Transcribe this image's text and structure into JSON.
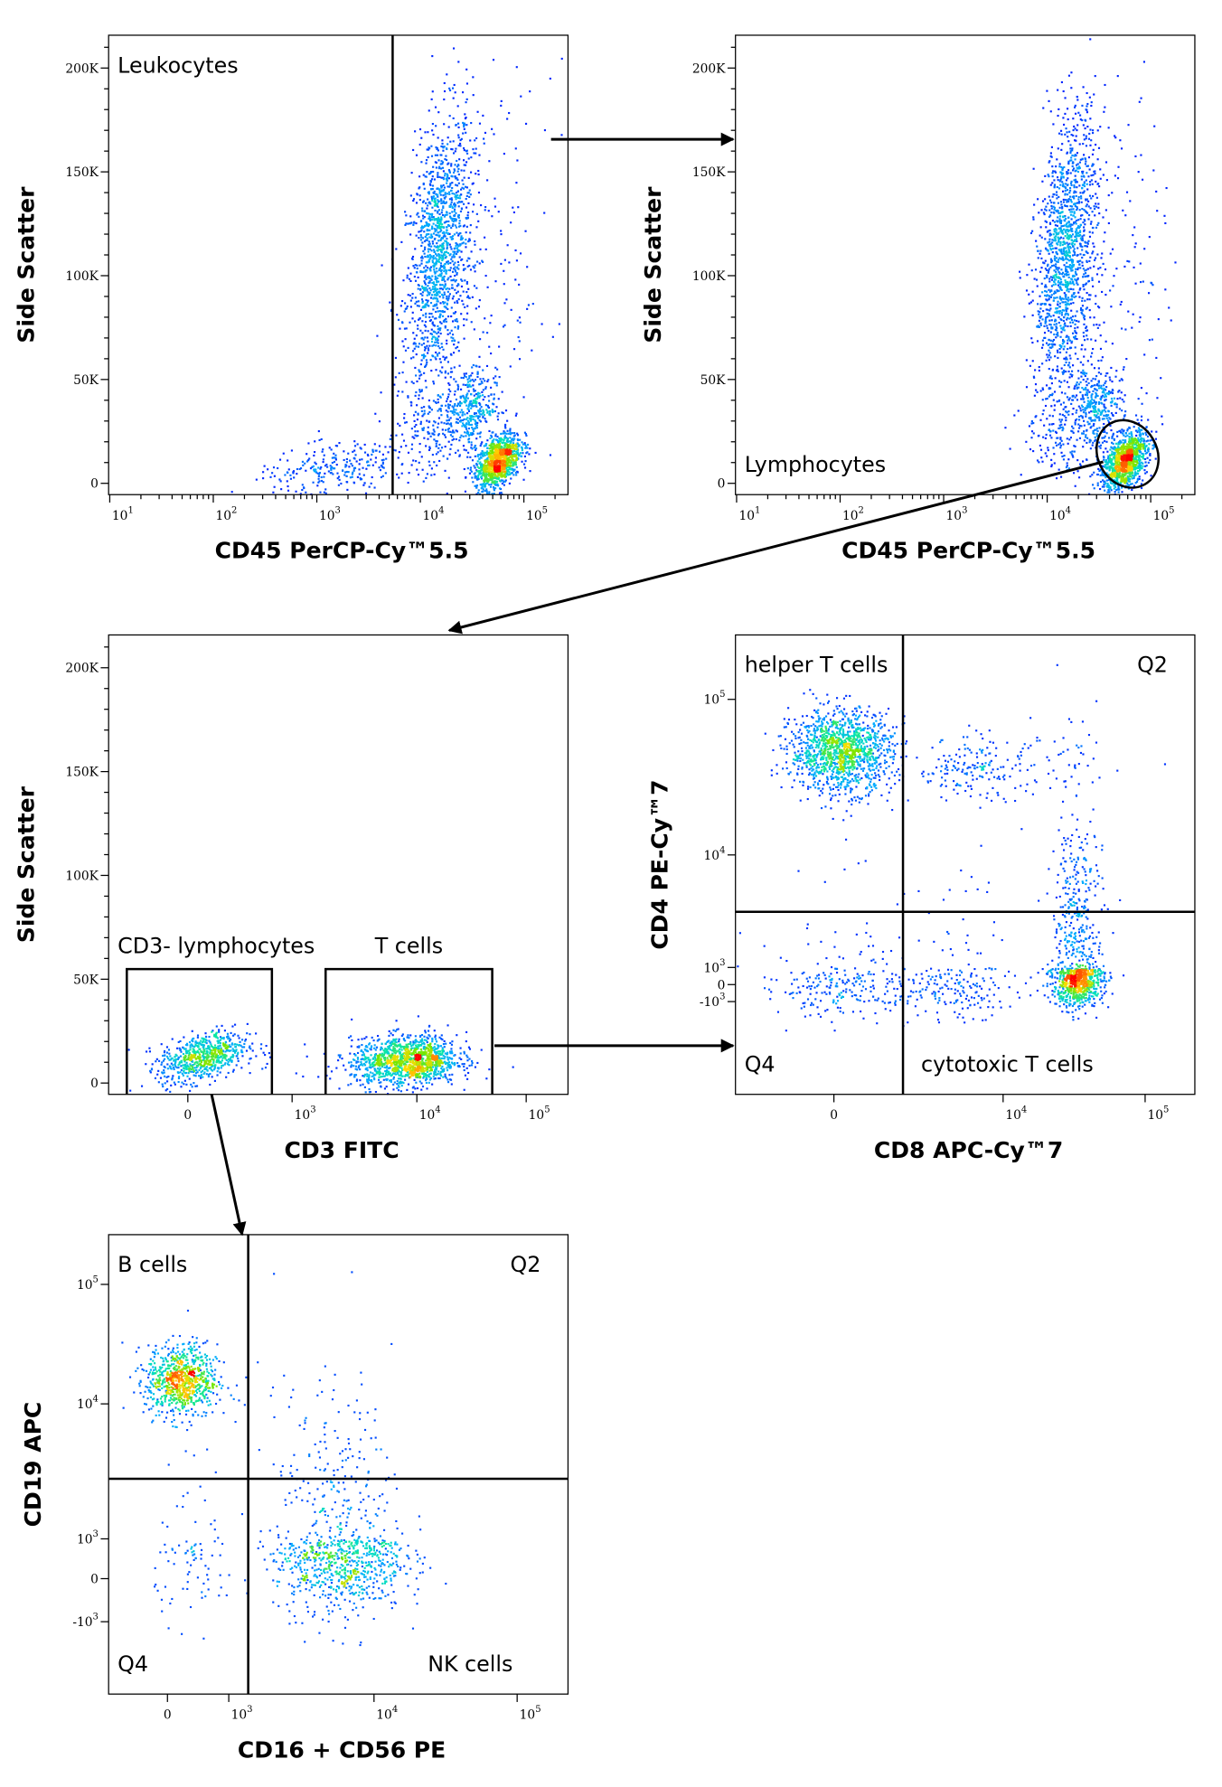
{
  "colors": {
    "gate": "#000000",
    "density_low": "#0000ff",
    "density_mid": "#00e078",
    "density_high": "#ff0000"
  },
  "gating_flow": [
    {
      "from_plot": 1,
      "to_plot": 2
    },
    {
      "from_plot": 2,
      "gate": "Lymphocytes",
      "to_plot": 3
    },
    {
      "from_plot": 3,
      "gate": "T cells",
      "to_plot": 4
    },
    {
      "from_plot": 3,
      "gate": "CD3- lymphocytes",
      "to_plot": 5
    }
  ],
  "chart_data": [
    {
      "type": "scatter",
      "style": "density pseudocolor",
      "xlabel": "CD45 PerCP-Cy™5.5",
      "ylabel": "Side Scatter",
      "xscale": "log",
      "yscale": "linear",
      "xlim": [
        8,
        270000
      ],
      "ylim": [
        -5400,
        215000
      ],
      "xticks": [
        {
          "value": 10,
          "base": "10",
          "exp": "1"
        },
        {
          "value": 100,
          "base": "10",
          "exp": "2"
        },
        {
          "value": 1000,
          "base": "10",
          "exp": "3"
        },
        {
          "value": 10000,
          "base": "10",
          "exp": "4"
        },
        {
          "value": 100000,
          "base": "10",
          "exp": "5"
        }
      ],
      "yticks": [
        {
          "value": 0,
          "label": "0"
        },
        {
          "value": 50000,
          "label": "50K"
        },
        {
          "value": 100000,
          "label": "100K"
        },
        {
          "value": 150000,
          "label": "150K"
        },
        {
          "value": 200000,
          "label": "200K"
        }
      ],
      "annotations": [
        {
          "text": "Leukocytes",
          "position": "top-left"
        }
      ],
      "gates": [
        {
          "type": "vertical-line",
          "x": 5400
        }
      ],
      "populations": [
        {
          "x": 15000,
          "y": 110000,
          "sx": 0.16,
          "sy": 33000,
          "rho": 0.35,
          "n": 1400
        },
        {
          "x": 30000,
          "y": 38000,
          "sx": 0.12,
          "sy": 9000,
          "rho": 0,
          "n": 300
        },
        {
          "x": 55000,
          "y": 11000,
          "sx": 0.11,
          "sy": 7000,
          "rho": 0.45,
          "n": 1100
        },
        {
          "x": 1500,
          "y": 7000,
          "sx": 0.4,
          "sy": 7000,
          "rho": 0.5,
          "n": 260
        },
        {
          "x": 50000,
          "y": 100000,
          "sx": 0.28,
          "sy": 50000,
          "rho": 0,
          "n": 150
        },
        {
          "x": 15000,
          "y": 25000,
          "sx": 0.25,
          "sy": 12000,
          "rho": 0,
          "n": 200
        }
      ]
    },
    {
      "type": "scatter",
      "style": "density pseudocolor",
      "xlabel": "CD45 PerCP-Cy™5.5",
      "ylabel": "Side Scatter",
      "xscale": "log",
      "yscale": "linear",
      "xlim": [
        8,
        270000
      ],
      "ylim": [
        -5400,
        215000
      ],
      "xticks": [
        {
          "value": 10,
          "base": "10",
          "exp": "1"
        },
        {
          "value": 100,
          "base": "10",
          "exp": "2"
        },
        {
          "value": 1000,
          "base": "10",
          "exp": "3"
        },
        {
          "value": 10000,
          "base": "10",
          "exp": "4"
        },
        {
          "value": 100000,
          "base": "10",
          "exp": "5"
        }
      ],
      "yticks": [
        {
          "value": 0,
          "label": "0"
        },
        {
          "value": 50000,
          "label": "50K"
        },
        {
          "value": 100000,
          "label": "100K"
        },
        {
          "value": 150000,
          "label": "150K"
        },
        {
          "value": 200000,
          "label": "200K"
        }
      ],
      "annotations": [
        {
          "text": "Lymphocytes",
          "position": "bottom-left"
        }
      ],
      "gates": [
        {
          "type": "ellipse",
          "x": [
            31000,
            115000
          ],
          "y": [
            -2700,
            31000
          ],
          "label": "Lymphocytes"
        }
      ],
      "populations": [
        {
          "x": 15000,
          "y": 110000,
          "sx": 0.15,
          "sy": 33000,
          "rho": 0.35,
          "n": 1400
        },
        {
          "x": 30000,
          "y": 38000,
          "sx": 0.12,
          "sy": 9000,
          "rho": 0,
          "n": 300
        },
        {
          "x": 55000,
          "y": 11000,
          "sx": 0.11,
          "sy": 7000,
          "rho": 0.45,
          "n": 1100
        },
        {
          "x": 50000,
          "y": 100000,
          "sx": 0.25,
          "sy": 50000,
          "rho": 0,
          "n": 150
        },
        {
          "x": 15000,
          "y": 25000,
          "sx": 0.2,
          "sy": 12000,
          "rho": 0,
          "n": 180
        }
      ]
    },
    {
      "type": "scatter",
      "style": "density pseudocolor",
      "xlabel": "CD3 FITC",
      "ylabel": "Side Scatter",
      "xscale": "biexponential",
      "yscale": "linear",
      "xlim": [
        -520,
        240000
      ],
      "ylim": [
        -5400,
        215000
      ],
      "xticks": [
        {
          "value": 0,
          "label": "0"
        },
        {
          "value": 1000,
          "base": "10",
          "exp": "3"
        },
        {
          "value": 10000,
          "base": "10",
          "exp": "4"
        },
        {
          "value": 100000,
          "base": "10",
          "exp": "5"
        }
      ],
      "yticks": [
        {
          "value": 0,
          "label": "0"
        },
        {
          "value": 50000,
          "label": "50K"
        },
        {
          "value": 100000,
          "label": "100K"
        },
        {
          "value": 150000,
          "label": "150K"
        },
        {
          "value": 200000,
          "label": "200K"
        }
      ],
      "annotations": [],
      "gates": [
        {
          "type": "rectangle",
          "x": [
            -307,
            592
          ],
          "y": [
            -10000,
            54900
          ],
          "label": "CD3- lymphocytes"
        },
        {
          "type": "rectangle",
          "x": [
            1895,
            49000
          ],
          "y": [
            -10000,
            54900
          ],
          "label": "T cells"
        }
      ],
      "populations": [
        {
          "x": 40,
          "y": 13000,
          "sx": 0.22,
          "sy": 6000,
          "rho": 0.4,
          "n": 700
        },
        {
          "x": 8400,
          "y": 11000,
          "sx": 0.22,
          "sy": 6000,
          "rho": 0.1,
          "n": 1300
        },
        {
          "x": 900,
          "y": 8000,
          "sx": 0.3,
          "sy": 5000,
          "rho": 0,
          "n": 15
        }
      ]
    },
    {
      "type": "scatter",
      "style": "density pseudocolor",
      "xlabel": "CD8 APC-Cy™7",
      "ylabel": "CD4 PE-Cy™7",
      "xscale": "biexponential",
      "yscale": "biexponential",
      "xlim": [
        -1400,
        220000
      ],
      "ylim": [
        -5000,
        250000
      ],
      "xticks": [
        {
          "value": 0,
          "label": "0"
        },
        {
          "value": 10000,
          "base": "10",
          "exp": "4"
        },
        {
          "value": 100000,
          "base": "10",
          "exp": "5"
        }
      ],
      "yticks": [
        {
          "value": -1000,
          "base": "-10",
          "exp": "3"
        },
        {
          "value": 0,
          "label": "0"
        },
        {
          "value": 1000,
          "base": "10",
          "exp": "3"
        },
        {
          "value": 10000,
          "base": "10",
          "exp": "4"
        },
        {
          "value": 100000,
          "base": "10",
          "exp": "5"
        }
      ],
      "annotations": [
        {
          "text": "helper T cells",
          "position": "top-left"
        },
        {
          "text": "Q2",
          "position": "top-right"
        },
        {
          "text": "Q4",
          "position": "bottom-left"
        },
        {
          "text": "cytotoxic T cells",
          "position": "bottom-right"
        }
      ],
      "gates": [
        {
          "type": "quadrant",
          "x": 560,
          "y": 3200
        }
      ],
      "populations": [
        {
          "x": 20,
          "y": 47000,
          "sx": 0.3,
          "sy": 0.13,
          "rho": 0,
          "n": 1300
        },
        {
          "x": 5000,
          "y": 36000,
          "sx": 0.4,
          "sy": 0.1,
          "rho": 0,
          "n": 200
        },
        {
          "x": 33000,
          "y": 250,
          "sx": 0.09,
          "sy": 0.9,
          "rho": 0,
          "n": 1000
        },
        {
          "x": 20,
          "y": 0,
          "sx": 0.5,
          "sy": 1.0,
          "rho": 0,
          "n": 250
        },
        {
          "x": 2500,
          "y": 0,
          "sx": 0.35,
          "sy": 1.0,
          "rho": 0,
          "n": 200
        },
        {
          "x": 33000,
          "y": 8000,
          "sx": 0.08,
          "sy": 0.25,
          "rho": 0,
          "n": 40
        }
      ]
    },
    {
      "type": "scatter",
      "style": "density pseudocolor",
      "xlabel": "CD16 + CD56 PE",
      "ylabel": "CD19 APC",
      "xscale": "biexponential",
      "yscale": "biexponential",
      "xlim": [
        -1000,
        240000
      ],
      "ylim": [
        -5000,
        250000
      ],
      "xticks": [
        {
          "value": 0,
          "label": "0"
        },
        {
          "value": 1000,
          "base": "10",
          "exp": "3"
        },
        {
          "value": 10000,
          "base": "10",
          "exp": "4"
        },
        {
          "value": 100000,
          "base": "10",
          "exp": "5"
        }
      ],
      "yticks": [
        {
          "value": -1000,
          "base": "-10",
          "exp": "3"
        },
        {
          "value": 0,
          "label": "0"
        },
        {
          "value": 1000,
          "base": "10",
          "exp": "3"
        },
        {
          "value": 10000,
          "base": "10",
          "exp": "4"
        },
        {
          "value": 100000,
          "base": "10",
          "exp": "5"
        }
      ],
      "annotations": [
        {
          "text": "B cells",
          "position": "top-left"
        },
        {
          "text": "Q2",
          "position": "top-right"
        },
        {
          "text": "Q4",
          "position": "bottom-left"
        },
        {
          "text": "NK cells",
          "position": "bottom-right"
        }
      ],
      "gates": [
        {
          "type": "quadrant",
          "x": 1380,
          "y": 2850
        }
      ],
      "populations": [
        {
          "x": 70,
          "y": 16000,
          "sx": 0.3,
          "sy": 0.15,
          "rho": 0,
          "n": 800
        },
        {
          "x": 5800,
          "y": 300,
          "sx": 0.22,
          "sy": 0.7,
          "rho": 0,
          "n": 900
        },
        {
          "x": 200,
          "y": 200,
          "sx": 0.35,
          "sy": 0.7,
          "rho": 0,
          "n": 90
        },
        {
          "x": 2000,
          "y": 15000,
          "sx": 0.3,
          "sy": 0.1,
          "rho": 0,
          "n": 6
        }
      ]
    }
  ]
}
